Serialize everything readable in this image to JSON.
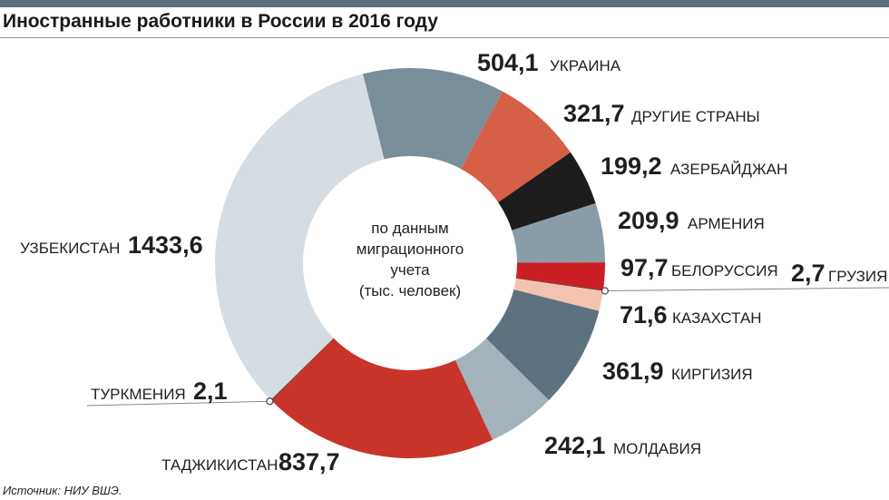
{
  "header": {
    "title": "Иностранные работники в России в 2016 году",
    "band_color": "#5f6f7a"
  },
  "footer": {
    "source": "Источник: НИУ ВШЭ."
  },
  "chart_data": {
    "type": "pie",
    "variant": "donut",
    "title": "Иностранные работники в России в 2016 году",
    "center_text": [
      "по данным",
      "миграционного",
      "учета",
      "(тыс. человек)"
    ],
    "unit": "тыс. человек",
    "start_angle_deg": -14,
    "direction": "clockwise",
    "slices": [
      {
        "label": "УКРАИНА",
        "value": 504.1,
        "display": "504,1",
        "color": "#7a8e9a"
      },
      {
        "label": "ДРУГИЕ СТРАНЫ",
        "value": 321.7,
        "display": "321,7",
        "color": "#d65f47"
      },
      {
        "label": "АЗЕРБАЙДЖАН",
        "value": 199.2,
        "display": "199,2",
        "color": "#1c1c1c"
      },
      {
        "label": "АРМЕНИЯ",
        "value": 209.9,
        "display": "209,9",
        "color": "#8a9ca8"
      },
      {
        "label": "БЕЛОРУССИЯ",
        "value": 97.7,
        "display": "97,7",
        "color": "#cc1f25"
      },
      {
        "label": "ГРУЗИЯ",
        "value": 2.7,
        "display": "2,7",
        "color": "#2a2a2a"
      },
      {
        "label": "КАЗАХСТАН",
        "value": 71.6,
        "display": "71,6",
        "color": "#f2c4b0"
      },
      {
        "label": "КИРГИЗИЯ",
        "value": 361.9,
        "display": "361,9",
        "color": "#5d717e"
      },
      {
        "label": "МОЛДАВИЯ",
        "value": 242.1,
        "display": "242,1",
        "color": "#a4b2bb"
      },
      {
        "label": "ТАДЖИКИСТАН",
        "value": 837.7,
        "display": "837,7",
        "color": "#c8332a"
      },
      {
        "label": "ТУРКМЕНИЯ",
        "value": 2.1,
        "display": "2,1",
        "color": "#1a1a1a"
      },
      {
        "label": "УЗБЕКИСТАН",
        "value": 1433.6,
        "display": "1433,6",
        "color": "#d5dde2"
      }
    ]
  }
}
